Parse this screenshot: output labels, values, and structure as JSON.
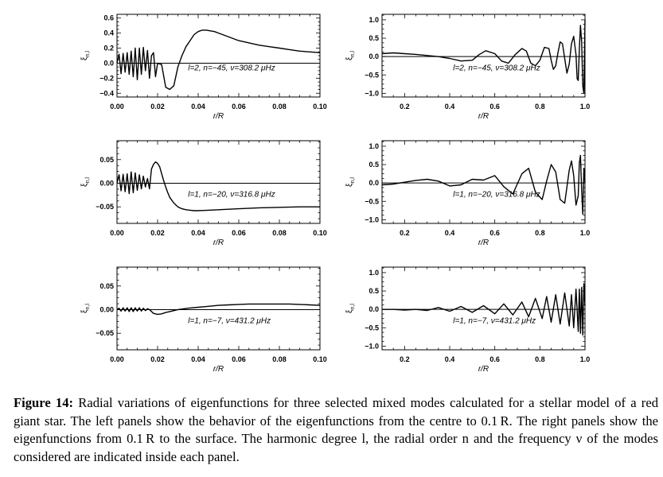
{
  "chart_data": [
    {
      "id": "p1",
      "type": "line",
      "xlim": [
        0.0,
        0.1
      ],
      "ylim": [
        -0.45,
        0.65
      ],
      "xticks": [
        0.0,
        0.02,
        0.04,
        0.06,
        0.08,
        0.1
      ],
      "xtick_labels": [
        "0.00",
        "0.02",
        "0.04",
        "0.06",
        "0.08",
        "0.10"
      ],
      "yticks": [
        0.6,
        0.4,
        0.2,
        0.0,
        -0.2,
        -0.4
      ],
      "ytick_labels": [
        "0.6",
        "0.4",
        "0.2",
        "0.0",
        "−0.2",
        "−0.4"
      ],
      "xlabel": "r/R",
      "ylabel": "ξ",
      "ylabel_sub": "n,l",
      "annotation": "l=2, n=−45, ν=308.2 μHz",
      "series": [
        {
          "x": [
            0.0,
            0.001,
            0.002,
            0.003,
            0.004,
            0.005,
            0.006,
            0.007,
            0.008,
            0.009,
            0.01,
            0.011,
            0.012,
            0.013,
            0.014,
            0.015,
            0.016,
            0.017,
            0.018,
            0.019,
            0.02,
            0.022,
            0.024,
            0.026,
            0.028,
            0.03,
            0.032,
            0.034,
            0.036,
            0.038,
            0.04,
            0.042,
            0.044,
            0.046,
            0.048,
            0.05,
            0.055,
            0.06,
            0.065,
            0.07,
            0.075,
            0.08,
            0.085,
            0.09,
            0.095,
            0.1
          ],
          "y": [
            0.0,
            0.12,
            -0.14,
            0.13,
            -0.12,
            0.14,
            -0.15,
            0.16,
            -0.18,
            0.2,
            -0.22,
            0.2,
            -0.15,
            0.21,
            -0.1,
            0.17,
            -0.2,
            0.1,
            0.14,
            -0.18,
            0.0,
            -0.02,
            -0.32,
            -0.35,
            -0.3,
            -0.05,
            0.1,
            0.22,
            0.3,
            0.38,
            0.42,
            0.44,
            0.44,
            0.43,
            0.42,
            0.4,
            0.35,
            0.3,
            0.27,
            0.24,
            0.22,
            0.2,
            0.18,
            0.16,
            0.15,
            0.14
          ]
        }
      ]
    },
    {
      "id": "p2",
      "type": "line",
      "xlim": [
        0.1,
        1.0
      ],
      "ylim": [
        -1.1,
        1.15
      ],
      "xticks": [
        0.2,
        0.4,
        0.6,
        0.8,
        1.0
      ],
      "xtick_labels": [
        "0.2",
        "0.4",
        "0.6",
        "0.8",
        "1.0"
      ],
      "yticks": [
        1.0,
        0.5,
        0.0,
        -0.5,
        -1.0
      ],
      "ytick_labels": [
        "1.0",
        "0.5",
        "0.0",
        "−0.5",
        "−1.0"
      ],
      "xlabel": "r/R",
      "ylabel": "ξ",
      "ylabel_sub": "n,l",
      "annotation": "l=2, n=−45, ν=308.2 μHz",
      "series": [
        {
          "x": [
            0.1,
            0.15,
            0.2,
            0.25,
            0.3,
            0.35,
            0.4,
            0.45,
            0.5,
            0.53,
            0.56,
            0.6,
            0.63,
            0.66,
            0.69,
            0.72,
            0.74,
            0.76,
            0.78,
            0.8,
            0.82,
            0.84,
            0.85,
            0.86,
            0.87,
            0.88,
            0.89,
            0.9,
            0.91,
            0.92,
            0.93,
            0.94,
            0.95,
            0.96,
            0.965,
            0.97,
            0.975,
            0.98,
            0.985,
            0.99,
            0.995,
            1.0
          ],
          "y": [
            0.08,
            0.1,
            0.08,
            0.06,
            0.03,
            0.0,
            -0.05,
            -0.12,
            -0.1,
            0.05,
            0.16,
            0.08,
            -0.12,
            -0.18,
            0.05,
            0.22,
            0.15,
            -0.18,
            -0.25,
            -0.1,
            0.25,
            0.22,
            -0.1,
            -0.35,
            -0.25,
            0.1,
            0.4,
            0.35,
            -0.05,
            -0.45,
            -0.2,
            0.35,
            0.55,
            0.05,
            -0.6,
            -0.65,
            0.2,
            0.85,
            0.4,
            -0.8,
            -1.0,
            1.0
          ]
        }
      ]
    },
    {
      "id": "p3",
      "type": "line",
      "xlim": [
        0.0,
        0.1
      ],
      "ylim": [
        -0.085,
        0.09
      ],
      "xticks": [
        0.0,
        0.02,
        0.04,
        0.06,
        0.08,
        0.1
      ],
      "xtick_labels": [
        "0.00",
        "0.02",
        "0.04",
        "0.06",
        "0.08",
        "0.10"
      ],
      "yticks": [
        0.05,
        0.0,
        -0.05
      ],
      "ytick_labels": [
        "0.05",
        "0.00",
        "−0.05"
      ],
      "xlabel": "r/R",
      "ylabel": "ξ",
      "ylabel_sub": "n,l",
      "annotation": "l=1, n=−20, ν=316.8 μHz",
      "series": [
        {
          "x": [
            0.0,
            0.001,
            0.002,
            0.003,
            0.004,
            0.005,
            0.006,
            0.007,
            0.008,
            0.009,
            0.01,
            0.011,
            0.012,
            0.013,
            0.014,
            0.015,
            0.016,
            0.017,
            0.018,
            0.019,
            0.02,
            0.021,
            0.022,
            0.023,
            0.024,
            0.025,
            0.026,
            0.028,
            0.03,
            0.032,
            0.034,
            0.036,
            0.038,
            0.04,
            0.045,
            0.05,
            0.055,
            0.06,
            0.07,
            0.08,
            0.09,
            0.1
          ],
          "y": [
            0.0,
            0.018,
            -0.016,
            0.019,
            -0.018,
            0.02,
            -0.022,
            0.024,
            -0.02,
            0.022,
            -0.015,
            0.018,
            -0.012,
            0.015,
            -0.008,
            0.01,
            -0.012,
            0.03,
            0.04,
            0.045,
            0.042,
            0.035,
            0.02,
            0.005,
            -0.008,
            -0.02,
            -0.03,
            -0.042,
            -0.05,
            -0.054,
            -0.056,
            -0.057,
            -0.058,
            -0.058,
            -0.057,
            -0.056,
            -0.055,
            -0.054,
            -0.052,
            -0.051,
            -0.05,
            -0.05
          ]
        }
      ]
    },
    {
      "id": "p4",
      "type": "line",
      "xlim": [
        0.1,
        1.0
      ],
      "ylim": [
        -1.1,
        1.15
      ],
      "xticks": [
        0.2,
        0.4,
        0.6,
        0.8,
        1.0
      ],
      "xtick_labels": [
        "0.2",
        "0.4",
        "0.6",
        "0.8",
        "1.0"
      ],
      "yticks": [
        1.0,
        0.5,
        0.0,
        -0.5,
        -1.0
      ],
      "ytick_labels": [
        "1.0",
        "0.5",
        "0.0",
        "−0.5",
        "−1.0"
      ],
      "xlabel": "r/R",
      "ylabel": "ξ",
      "ylabel_sub": "n,l",
      "annotation": "l=1, n=−20, ν=316.8 μHz",
      "series": [
        {
          "x": [
            0.1,
            0.15,
            0.2,
            0.25,
            0.3,
            0.35,
            0.4,
            0.45,
            0.5,
            0.55,
            0.6,
            0.64,
            0.68,
            0.72,
            0.75,
            0.78,
            0.81,
            0.83,
            0.85,
            0.87,
            0.89,
            0.91,
            0.93,
            0.94,
            0.95,
            0.96,
            0.97,
            0.975,
            0.98,
            0.985,
            0.99,
            0.995,
            1.0
          ],
          "y": [
            -0.05,
            -0.03,
            0.02,
            0.07,
            0.1,
            0.05,
            -0.08,
            -0.05,
            0.1,
            0.08,
            0.2,
            -0.1,
            -0.3,
            0.25,
            0.4,
            -0.25,
            -0.45,
            0.05,
            0.5,
            0.3,
            -0.45,
            -0.55,
            0.35,
            0.6,
            0.2,
            -0.6,
            -0.35,
            0.55,
            0.75,
            -0.2,
            -0.85,
            0.4,
            0.0
          ]
        }
      ]
    },
    {
      "id": "p5",
      "type": "line",
      "xlim": [
        0.0,
        0.1
      ],
      "ylim": [
        -0.085,
        0.09
      ],
      "xticks": [
        0.0,
        0.02,
        0.04,
        0.06,
        0.08,
        0.1
      ],
      "xtick_labels": [
        "0.00",
        "0.02",
        "0.04",
        "0.06",
        "0.08",
        "0.10"
      ],
      "yticks": [
        0.05,
        0.0,
        -0.05
      ],
      "ytick_labels": [
        "0.05",
        "0.00",
        "−0.05"
      ],
      "xlabel": "r/R",
      "ylabel": "ξ",
      "ylabel_sub": "n,l",
      "annotation": "l=1, n=−7, ν=431.2 μHz",
      "series": [
        {
          "x": [
            0.0,
            0.001,
            0.002,
            0.003,
            0.004,
            0.005,
            0.006,
            0.007,
            0.008,
            0.009,
            0.01,
            0.011,
            0.012,
            0.013,
            0.014,
            0.015,
            0.016,
            0.018,
            0.02,
            0.022,
            0.024,
            0.026,
            0.028,
            0.03,
            0.035,
            0.04,
            0.045,
            0.05,
            0.055,
            0.06,
            0.065,
            0.07,
            0.075,
            0.08,
            0.085,
            0.09,
            0.095,
            0.1
          ],
          "y": [
            0.0,
            0.003,
            -0.003,
            0.004,
            -0.003,
            0.004,
            -0.004,
            0.004,
            -0.004,
            0.004,
            -0.003,
            0.004,
            -0.003,
            0.003,
            -0.002,
            0.002,
            0.0,
            -0.008,
            -0.01,
            -0.009,
            -0.006,
            -0.004,
            -0.002,
            0.0,
            0.003,
            0.005,
            0.007,
            0.009,
            0.01,
            0.011,
            0.012,
            0.012,
            0.012,
            0.012,
            0.012,
            0.011,
            0.01,
            0.009
          ]
        }
      ]
    },
    {
      "id": "p6",
      "type": "line",
      "xlim": [
        0.1,
        1.0
      ],
      "ylim": [
        -1.1,
        1.15
      ],
      "xticks": [
        0.2,
        0.4,
        0.6,
        0.8,
        1.0
      ],
      "xtick_labels": [
        "0.2",
        "0.4",
        "0.6",
        "0.8",
        "1.0"
      ],
      "yticks": [
        1.0,
        0.5,
        0.0,
        -0.5,
        -1.0
      ],
      "ytick_labels": [
        "1.0",
        "0.5",
        "0.0",
        "−0.5",
        "−1.0"
      ],
      "xlabel": "r/R",
      "ylabel": "ξ",
      "ylabel_sub": "n,l",
      "annotation": "l=1, n=−7, ν=431.2 μHz",
      "series": [
        {
          "x": [
            0.1,
            0.15,
            0.2,
            0.25,
            0.3,
            0.35,
            0.4,
            0.45,
            0.5,
            0.55,
            0.6,
            0.64,
            0.68,
            0.72,
            0.75,
            0.78,
            0.81,
            0.83,
            0.85,
            0.87,
            0.89,
            0.91,
            0.93,
            0.94,
            0.95,
            0.96,
            0.97,
            0.975,
            0.98,
            0.985,
            0.99,
            0.995,
            1.0
          ],
          "y": [
            0.0,
            0.0,
            -0.02,
            0.0,
            -0.03,
            0.05,
            -0.05,
            0.08,
            -0.08,
            0.1,
            -0.12,
            0.15,
            -0.15,
            0.2,
            -0.2,
            0.3,
            -0.25,
            0.35,
            -0.35,
            0.4,
            -0.4,
            0.45,
            -0.45,
            0.4,
            -0.5,
            0.55,
            -0.6,
            0.55,
            -0.65,
            0.6,
            -0.7,
            0.7,
            0.1
          ]
        }
      ]
    }
  ],
  "caption": {
    "label": "Figure 14:",
    "text": " Radial variations of eigenfunctions for three selected mixed modes calculated for a stellar model of a red giant star. The left panels show the behavior of the eigenfunctions from the centre to 0.1 R. The right panels show the eigenfunctions from 0.1 R to the surface. The harmonic degree l, the radial order n and the frequency ν of the modes considered are indicated inside each panel."
  },
  "colors": {
    "line": "#000000",
    "axis": "#000000",
    "background": "#ffffff"
  }
}
